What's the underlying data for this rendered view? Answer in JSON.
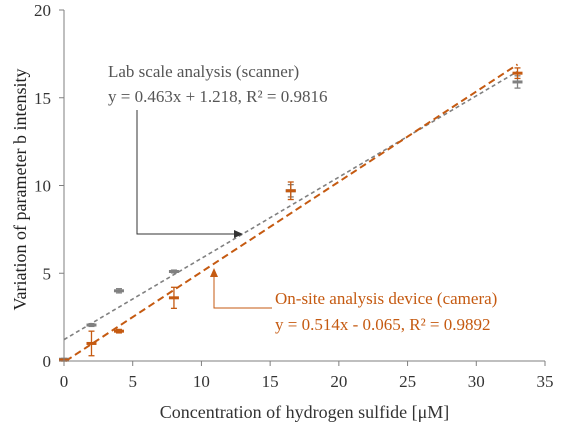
{
  "chart_data": {
    "type": "scatter",
    "xlabel": "Concentration of hydrogen sulfide [μM]",
    "ylabel": "Variation of  parameter b intensity",
    "xlim": [
      0,
      35
    ],
    "ylim": [
      0,
      20
    ],
    "x_ticks": [
      "0",
      "5",
      "10",
      "15",
      "20",
      "25",
      "30",
      "35"
    ],
    "y_ticks": [
      "0",
      "5",
      "10",
      "15",
      "20"
    ],
    "grid": false,
    "series": [
      {
        "name": "Lab scale analysis (scanner)",
        "color": "#808080",
        "marker": "dash",
        "points": [
          {
            "x": 0,
            "y": 0.1,
            "err": 0.05
          },
          {
            "x": 2,
            "y": 2.05,
            "err": 0.08
          },
          {
            "x": 4,
            "y": 4.0,
            "err": 0.12
          },
          {
            "x": 8,
            "y": 5.1,
            "err": 0.08
          },
          {
            "x": 16.5,
            "y": 9.7,
            "err": 0.35
          },
          {
            "x": 33,
            "y": 15.9,
            "err": 0.35
          }
        ],
        "fit": {
          "slope": 0.463,
          "intercept": 1.218
        },
        "equation": "y = 0.463x + 1.218, R² = 0.9816"
      },
      {
        "name": "On-site analysis device (camera)",
        "color": "#c55a11",
        "marker": "dash",
        "points": [
          {
            "x": 0,
            "y": 0.05,
            "err": 0.05
          },
          {
            "x": 2,
            "y": 1.0,
            "err": 0.7
          },
          {
            "x": 4,
            "y": 1.7,
            "err": 0.1
          },
          {
            "x": 8,
            "y": 3.6,
            "err": 0.6
          },
          {
            "x": 16.5,
            "y": 9.7,
            "err": 0.5
          },
          {
            "x": 33,
            "y": 16.4,
            "err": 0.3
          }
        ],
        "fit": {
          "slope": 0.514,
          "intercept": -0.065
        },
        "equation": "y = 0.514x - 0.065, R² = 0.9892"
      }
    ]
  }
}
